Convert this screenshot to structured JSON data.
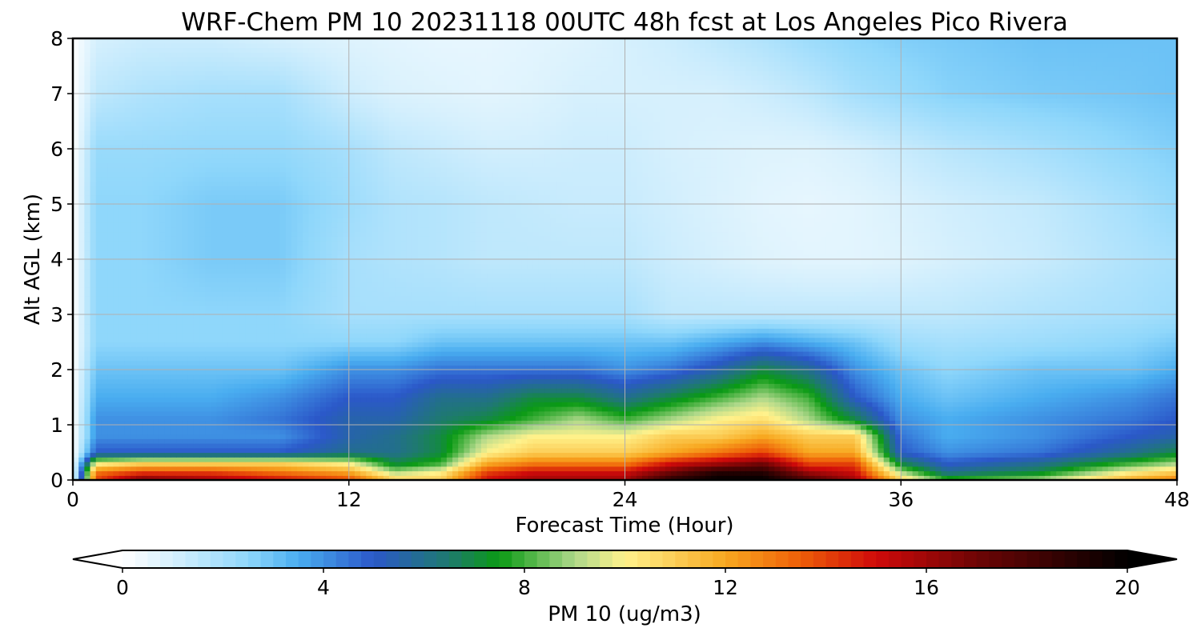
{
  "chart_data": {
    "type": "heatmap",
    "title": "WRF-Chem PM 10  20231118 00UTC 48h fcst at Los Angeles Pico Rivera",
    "xlabel": "Forecast Time (Hour)",
    "ylabel": "Alt AGL (km)",
    "xlim": [
      0,
      48
    ],
    "ylim": [
      0,
      8
    ],
    "x_ticks": [
      0,
      12,
      24,
      36,
      48
    ],
    "y_ticks": [
      0,
      1,
      2,
      3,
      4,
      5,
      6,
      7,
      8
    ],
    "grid": true,
    "colorbar": {
      "label": "PM 10  (ug/m3)",
      "range": [
        0,
        20
      ],
      "ticks": [
        0,
        4,
        8,
        12,
        16,
        20
      ],
      "extend": "both",
      "stops": [
        {
          "value": 0,
          "color": "#ffffff"
        },
        {
          "value": 1,
          "color": "#d6f0fd"
        },
        {
          "value": 2.5,
          "color": "#8fd7fb"
        },
        {
          "value": 3.5,
          "color": "#49adf0"
        },
        {
          "value": 5,
          "color": "#2b58c9"
        },
        {
          "value": 6.5,
          "color": "#1e7a6e"
        },
        {
          "value": 7.5,
          "color": "#0a9a14"
        },
        {
          "value": 9,
          "color": "#aed88a"
        },
        {
          "value": 10,
          "color": "#fff28c"
        },
        {
          "value": 12,
          "color": "#f8a820"
        },
        {
          "value": 13.5,
          "color": "#ee5e08"
        },
        {
          "value": 15,
          "color": "#cf0a0a"
        },
        {
          "value": 17,
          "color": "#6e0505"
        },
        {
          "value": 20,
          "color": "#000000"
        }
      ]
    },
    "time_hours": [
      0,
      1,
      3,
      6,
      9,
      12,
      14,
      16,
      18,
      20,
      22,
      24,
      26,
      28,
      30,
      32,
      34,
      36,
      38,
      42,
      46,
      48
    ],
    "altitudes_km": [
      0,
      0.15,
      0.3,
      0.5,
      0.8,
      1.1,
      1.5,
      2.0,
      2.5,
      3.0,
      4.0,
      5.0,
      6.0,
      7.0,
      8.0
    ],
    "pm10_values": [
      [
        0,
        14,
        17,
        16,
        15,
        14,
        11,
        11,
        15,
        16,
        16,
        16,
        19,
        20,
        20,
        18,
        16,
        11,
        8,
        9,
        12,
        13
      ],
      [
        0,
        13,
        14,
        14,
        13,
        12,
        9,
        10,
        14,
        15,
        15,
        15,
        17,
        19,
        19,
        16,
        15,
        9,
        6,
        7,
        10,
        11
      ],
      [
        0,
        10,
        11,
        11,
        11,
        10,
        7,
        8,
        12,
        13,
        13,
        13,
        15,
        16,
        17,
        14,
        14,
        7,
        5,
        6,
        8,
        9
      ],
      [
        0,
        5,
        5,
        5,
        5,
        6,
        6,
        7,
        10,
        11,
        11,
        11,
        12,
        13,
        14,
        12,
        12,
        5,
        4,
        4.5,
        6,
        7
      ],
      [
        0,
        4,
        4,
        4,
        4,
        5.5,
        6,
        7,
        9,
        10,
        10,
        10,
        11,
        11,
        12,
        11,
        11,
        4.5,
        3.5,
        4,
        5,
        5.5
      ],
      [
        0,
        4,
        4,
        4,
        4.5,
        5.5,
        5.5,
        6.5,
        7,
        8,
        9,
        8,
        9,
        10,
        10.5,
        9,
        7,
        4,
        3.5,
        4,
        4.5,
        5
      ],
      [
        0,
        3.5,
        3.5,
        3.5,
        4,
        5,
        5,
        6,
        6,
        7,
        7,
        6,
        7,
        8,
        9,
        8,
        5,
        3.5,
        3,
        3.5,
        4,
        4.5
      ],
      [
        0,
        3,
        3,
        3,
        3,
        4,
        4,
        4.5,
        4.5,
        4.5,
        4.5,
        4,
        4.5,
        5.5,
        7,
        6,
        4,
        3,
        2.5,
        3,
        3,
        3.5
      ],
      [
        0,
        2.5,
        2.5,
        2.5,
        2.5,
        2.5,
        2.5,
        3,
        3,
        3,
        3,
        3,
        3,
        3.5,
        4,
        3.5,
        3,
        2.2,
        2,
        2.2,
        2.5,
        2.8
      ],
      [
        0,
        2.5,
        2.5,
        2.5,
        2.5,
        2,
        2,
        2,
        2,
        2,
        2,
        2,
        1.5,
        1.5,
        1.5,
        1.5,
        1.5,
        1.5,
        1.5,
        1.8,
        2,
        2.2
      ],
      [
        0,
        2.5,
        2.5,
        2.8,
        2.8,
        2,
        1.8,
        1.7,
        1.5,
        1.5,
        1.5,
        1.5,
        1.2,
        1,
        0.8,
        0.7,
        0.7,
        0.8,
        1,
        1.3,
        1.8,
        2
      ],
      [
        0,
        2.5,
        2.5,
        2.8,
        2.8,
        2.2,
        1.8,
        1.7,
        1.5,
        1.4,
        1.3,
        1.3,
        1.1,
        0.9,
        0.7,
        0.6,
        0.7,
        0.9,
        1.1,
        1.4,
        2,
        2.4
      ],
      [
        0,
        2.3,
        2.3,
        2.4,
        2.4,
        2,
        1.5,
        1.3,
        1.1,
        1.1,
        1.2,
        1.2,
        1,
        0.9,
        0.8,
        0.8,
        1,
        1.3,
        1.6,
        2,
        2.5,
        2.7
      ],
      [
        0,
        1.5,
        1.8,
        2,
        2,
        1.2,
        0.9,
        0.8,
        0.7,
        0.8,
        1,
        1,
        1,
        1,
        1.2,
        1.5,
        2,
        2.3,
        2.6,
        2.8,
        2.9,
        3
      ],
      [
        0,
        1,
        1.2,
        1.2,
        1,
        0.8,
        0.7,
        0.6,
        0.6,
        0.7,
        0.8,
        1,
        1.2,
        1.5,
        1.8,
        2.2,
        2.5,
        2.7,
        2.8,
        3,
        3,
        3
      ]
    ]
  }
}
